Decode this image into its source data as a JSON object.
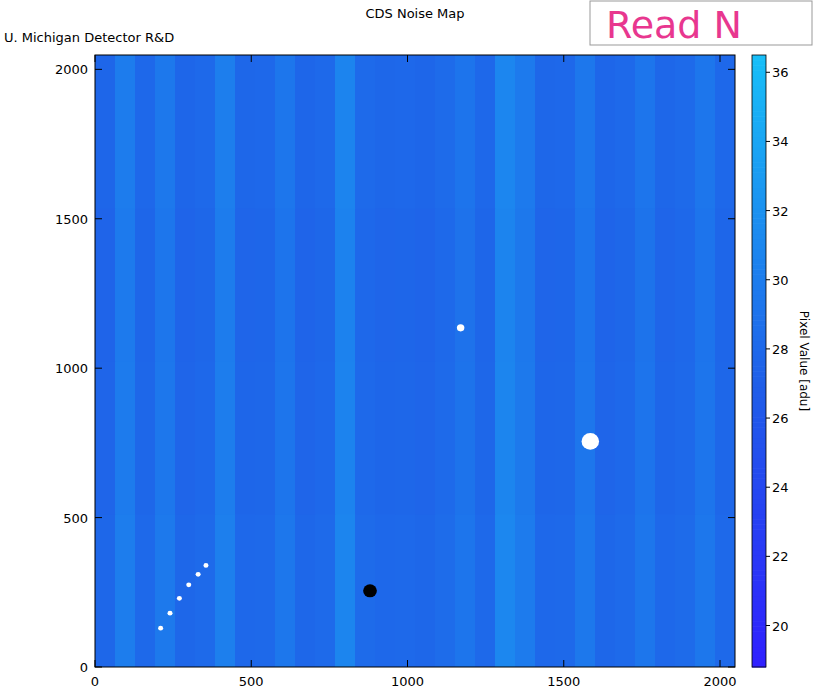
{
  "chart_data": {
    "type": "heatmap",
    "title": "CDS Noise Map",
    "subtitle": "U. Michigan Detector R&D",
    "annotation": "Read N",
    "xlim": [
      0,
      2048
    ],
    "ylim": [
      0,
      2048
    ],
    "xticks": [
      0,
      500,
      1000,
      1500,
      2000
    ],
    "yticks": [
      0,
      500,
      1000,
      1500,
      2000
    ],
    "cells": [
      [
        27.8,
        30.0,
        28.0,
        29.6,
        27.8,
        28.1,
        30.2,
        27.9,
        28.0,
        29.4,
        27.8,
        28.1,
        30.8,
        28.2,
        27.9,
        28.0,
        27.8,
        28.3,
        29.2,
        28.0,
        31.0,
        29.8,
        27.9,
        28.0,
        29.5,
        27.8,
        28.1,
        29.3,
        27.9,
        28.2,
        29.4,
        28.0
      ],
      [
        27.6,
        29.8,
        27.8,
        29.4,
        27.6,
        27.9,
        30.0,
        27.7,
        27.8,
        29.2,
        27.6,
        27.9,
        30.6,
        28.0,
        27.7,
        27.8,
        27.6,
        28.1,
        29.0,
        27.8,
        30.8,
        29.6,
        27.7,
        27.8,
        29.3,
        27.6,
        27.9,
        29.1,
        27.7,
        28.0,
        29.2,
        27.8
      ],
      [
        27.5,
        29.7,
        27.7,
        29.3,
        27.5,
        27.8,
        29.9,
        27.6,
        27.7,
        29.1,
        27.5,
        27.8,
        30.5,
        27.9,
        27.6,
        27.7,
        27.5,
        28.0,
        28.9,
        27.7,
        30.7,
        29.5,
        27.6,
        27.7,
        29.2,
        27.5,
        27.8,
        29.0,
        27.6,
        27.9,
        29.1,
        27.7
      ],
      [
        27.7,
        29.9,
        27.9,
        29.5,
        27.7,
        28.0,
        30.1,
        27.8,
        27.9,
        29.3,
        27.7,
        28.0,
        30.7,
        28.1,
        27.8,
        27.9,
        27.7,
        28.2,
        29.1,
        27.9,
        30.9,
        29.7,
        27.8,
        27.9,
        29.4,
        27.7,
        28.0,
        29.2,
        27.8,
        28.1,
        29.3,
        27.9
      ]
    ],
    "spots": [
      {
        "x": 1585,
        "y": 755,
        "r": 28,
        "value": 50
      },
      {
        "x": 1170,
        "y": 1135,
        "r": 12,
        "value": 50
      },
      {
        "x": 880,
        "y": 255,
        "r": 22,
        "value": 0
      },
      {
        "x": 210,
        "y": 130,
        "r": 8,
        "value": 40
      },
      {
        "x": 240,
        "y": 180,
        "r": 8,
        "value": 40
      },
      {
        "x": 270,
        "y": 230,
        "r": 8,
        "value": 40
      },
      {
        "x": 300,
        "y": 275,
        "r": 8,
        "value": 40
      },
      {
        "x": 330,
        "y": 310,
        "r": 8,
        "value": 40
      },
      {
        "x": 355,
        "y": 340,
        "r": 8,
        "value": 40
      }
    ],
    "colorbar_range": [
      18.8,
      36.5
    ],
    "colorbar_ticks": [
      20,
      22,
      24,
      26,
      28,
      30,
      32,
      34,
      36
    ],
    "colorbar_label": "Pixel Value [adu]"
  }
}
